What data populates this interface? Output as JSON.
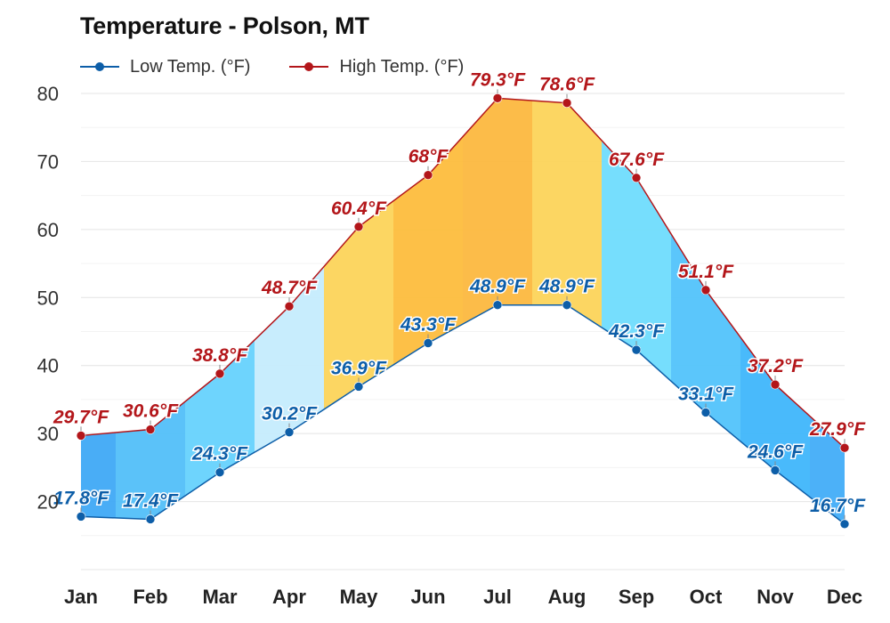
{
  "title": "Temperature - Polson, MT",
  "legend": {
    "low": {
      "label": "Low Temp. (°F)",
      "color": "#0d5ea8"
    },
    "high": {
      "label": "High Temp. (°F)",
      "color": "#b3161a"
    }
  },
  "chart_data": {
    "type": "area",
    "title": "Temperature - Polson, MT",
    "categories": [
      "Jan",
      "Feb",
      "Mar",
      "Apr",
      "May",
      "Jun",
      "Jul",
      "Aug",
      "Sep",
      "Oct",
      "Nov",
      "Dec"
    ],
    "series": [
      {
        "name": "Low Temp. (°F)",
        "values": [
          17.8,
          17.4,
          24.3,
          30.2,
          36.9,
          43.3,
          48.9,
          48.9,
          42.3,
          33.1,
          24.6,
          16.7
        ],
        "labels": [
          "17.8°F",
          "17.4°F",
          "24.3°F",
          "30.2°F",
          "36.9°F",
          "43.3°F",
          "48.9°F",
          "48.9°F",
          "42.3°F",
          "33.1°F",
          "24.6°F",
          "16.7°F"
        ],
        "color": "#0d5ea8"
      },
      {
        "name": "High Temp. (°F)",
        "values": [
          29.7,
          30.6,
          38.8,
          48.7,
          60.4,
          68,
          79.3,
          78.6,
          67.6,
          51.1,
          37.2,
          27.9
        ],
        "labels": [
          "29.7°F",
          "30.6°F",
          "38.8°F",
          "48.7°F",
          "60.4°F",
          "68°F",
          "79.3°F",
          "78.6°F",
          "67.6°F",
          "51.1°F",
          "37.2°F",
          "27.9°F"
        ],
        "color": "#b3161a"
      }
    ],
    "ylim": [
      10,
      80
    ],
    "yticks": [
      "20",
      "30",
      "40",
      "50",
      "60",
      "70",
      "80"
    ],
    "grid": true,
    "legend_position": "top-left",
    "band_colors": [
      "#3fa9f5",
      "#52bff9",
      "#66d2fd",
      "#c5ecfd",
      "#fcd45a",
      "#fdbd3d",
      "#fcb83f",
      "#fcd45a",
      "#6fdcfd",
      "#52c3fb",
      "#3fb6fb",
      "#42adf8"
    ]
  }
}
